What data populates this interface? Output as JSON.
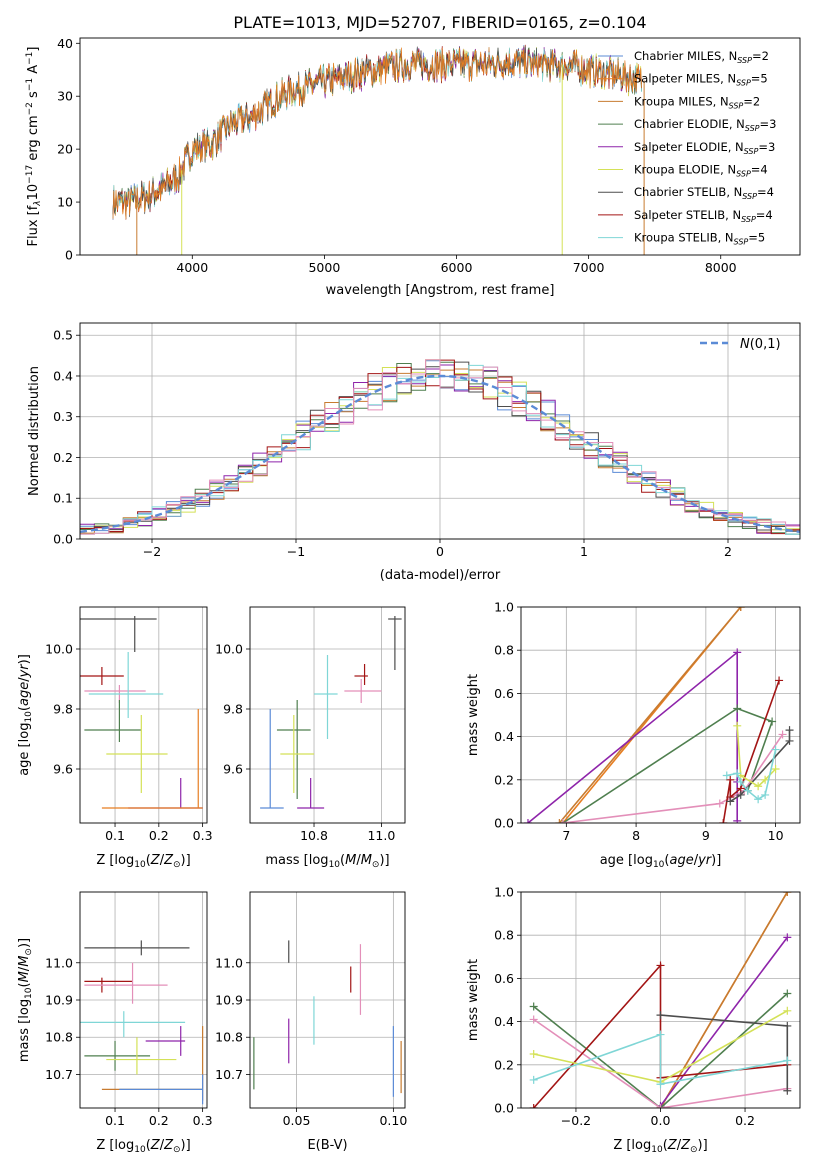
{
  "title": "PLATE=1013, MJD=52707, FIBERID=0165, z=0.104",
  "colors": [
    "#5b8bd6",
    "#e67e22",
    "#c77b30",
    "#4f7f4f",
    "#8e24aa",
    "#d4e157",
    "#4d4d4d",
    "#a31515",
    "#7fd6d6",
    "#e38fb9"
  ],
  "series_names": [
    "Chabrier MILES, N_SSP=2",
    "Salpeter MILES, N_SSP=5",
    "Kroupa MILES, N_SSP=2",
    "Chabrier ELODIE, N_SSP=3",
    "Salpeter ELODIE, N_SSP=3",
    "Kroupa ELODIE, N_SSP=4",
    "Chabrier STELIB, N_SSP=4",
    "Salpeter STELIB, N_SSP=4",
    "Kroupa STELIB, N_SSP=5"
  ],
  "series_legend": [
    {
      "label": "Chabrier MILES, N",
      "sub": "SSP",
      "suffix": "=2",
      "color": "#5b8bd6"
    },
    {
      "label": "Salpeter MILES, N",
      "sub": "SSP",
      "suffix": "=5",
      "color": "#e67e22"
    },
    {
      "label": "Kroupa MILES, N",
      "sub": "SSP",
      "suffix": "=2",
      "color": "#c77b30"
    },
    {
      "label": "Chabrier ELODIE, N",
      "sub": "SSP",
      "suffix": "=3",
      "color": "#4f7f4f"
    },
    {
      "label": "Salpeter ELODIE, N",
      "sub": "SSP",
      "suffix": "=3",
      "color": "#8e24aa"
    },
    {
      "label": "Kroupa ELODIE, N",
      "sub": "SSP",
      "suffix": "=4",
      "color": "#d4e157"
    },
    {
      "label": "Chabrier STELIB, N",
      "sub": "SSP",
      "suffix": "=4",
      "color": "#4d4d4d"
    },
    {
      "label": "Salpeter STELIB, N",
      "sub": "SSP",
      "suffix": "=4",
      "color": "#a31515"
    },
    {
      "label": "Kroupa STELIB, N",
      "sub": "SSP",
      "suffix": "=5",
      "color": "#7fd6d6"
    }
  ],
  "chart_data": [
    {
      "id": "spectrum",
      "type": "line",
      "title": "PLATE=1013, MJD=52707, FIBERID=0165, z=0.104",
      "xlabel": "wavelength [Angstrom, rest frame]",
      "ylabel": "Flux [f_λ10^-17 erg cm^-2 s^-1 A^-1]",
      "xlim": [
        3150,
        8600
      ],
      "ylim": [
        0,
        41
      ],
      "xticks": [
        4000,
        5000,
        6000,
        7000,
        8000
      ],
      "yticks": [
        0,
        10,
        20,
        30,
        40
      ],
      "legend_position": "upper right",
      "grid": false,
      "continuum": {
        "x": [
          3400,
          3500,
          3650,
          3800,
          3900,
          4000,
          4150,
          4300,
          4450,
          4600,
          4750,
          4900,
          5050,
          5200,
          5400,
          5600,
          5800,
          6000,
          6200,
          6400,
          6600,
          6800,
          7000,
          7200,
          7400
        ],
        "y": [
          10,
          10,
          11,
          13,
          15,
          20,
          21,
          25,
          26,
          29,
          31,
          32,
          33,
          34,
          35,
          36,
          36,
          36,
          36,
          36.5,
          36,
          36,
          35,
          34,
          33
        ]
      },
      "dropouts": [
        {
          "series": 2,
          "x": 3580,
          "y": 0
        },
        {
          "series": 5,
          "x": 3920,
          "y": 0
        },
        {
          "series": 5,
          "x": 6800,
          "y": 0
        },
        {
          "series": 2,
          "x": 7420,
          "y": 0
        }
      ]
    },
    {
      "id": "residuals",
      "type": "histogram",
      "xlabel": "(data-model)/error",
      "ylabel": "Normed distribution",
      "xlim": [
        -2.5,
        2.5
      ],
      "ylim": [
        0,
        0.53
      ],
      "xticks": [
        -2,
        -1,
        0,
        1,
        2
      ],
      "yticks": [
        0,
        0.1,
        0.2,
        0.3,
        0.4,
        0.5
      ],
      "bin_width": 0.1,
      "grid": true,
      "reference_curve": {
        "name": "N(0,1)",
        "style": "dashed",
        "color": "#5b8bd6",
        "mean": 0,
        "sigma": 1,
        "peak": 0.4
      },
      "legend_position": "upper right"
    },
    {
      "id": "age-vs-Z",
      "type": "errorbar",
      "xlabel": "Z [log10(Z/Z⊙)]",
      "ylabel": "age [log10(age/yr)]",
      "xlim": [
        0.02,
        0.31
      ],
      "ylim": [
        9.42,
        10.14
      ],
      "xticks": [
        0.1,
        0.2,
        0.3
      ],
      "yticks": [
        9.6,
        9.8,
        10.0
      ],
      "grid": true,
      "points": [
        {
          "series": 6,
          "x": 0.145,
          "y": 10.1,
          "xerr": [
            0.145,
            0.05
          ],
          "yerr": [
            0.11,
            0.01
          ]
        },
        {
          "series": 7,
          "x": 0.07,
          "y": 9.91,
          "xerr": [
            0.05,
            0.05
          ],
          "yerr": [
            0.03,
            0.03
          ]
        },
        {
          "series": 9,
          "x": 0.11,
          "y": 9.86,
          "xerr": [
            0.08,
            0.06
          ],
          "yerr": [
            0.04,
            0.02
          ]
        },
        {
          "series": 8,
          "x": 0.13,
          "y": 9.85,
          "xerr": [
            0.09,
            0.08
          ],
          "yerr": [
            0.08,
            0.14
          ]
        },
        {
          "series": 3,
          "x": 0.11,
          "y": 9.73,
          "xerr": [
            0.08,
            0.05
          ],
          "yerr": [
            0.04,
            0.1
          ]
        },
        {
          "series": 5,
          "x": 0.16,
          "y": 9.65,
          "xerr": [
            0.08,
            0.06
          ],
          "yerr": [
            0.13,
            0.13
          ]
        },
        {
          "series": 4,
          "x": 0.25,
          "y": 9.47,
          "xerr": [
            0.12,
            0.05
          ],
          "yerr": [
            0,
            0.1
          ]
        },
        {
          "series": 1,
          "x": 0.29,
          "y": 9.47,
          "xerr": [
            0.22,
            0.01
          ],
          "yerr": [
            0,
            0.33
          ]
        }
      ]
    },
    {
      "id": "age-vs-mass",
      "type": "errorbar",
      "xlabel": "mass [log10(M/M⊙)]",
      "ylabel": "",
      "xlim": [
        10.61,
        11.07
      ],
      "ylim": [
        9.42,
        10.14
      ],
      "xticks": [
        10.8,
        11.0
      ],
      "yticks": [
        9.6,
        9.8,
        10.0
      ],
      "grid": true,
      "points": [
        {
          "series": 6,
          "x": 11.04,
          "y": 10.1,
          "xerr": [
            0.02,
            0.02
          ],
          "yerr": [
            0.17,
            0.01
          ]
        },
        {
          "series": 7,
          "x": 10.95,
          "y": 9.91,
          "xerr": [
            0.03,
            0.01
          ],
          "yerr": [
            0.03,
            0.04
          ]
        },
        {
          "series": 9,
          "x": 10.94,
          "y": 9.86,
          "xerr": [
            0.05,
            0.06
          ],
          "yerr": [
            0.04,
            0.04
          ]
        },
        {
          "series": 8,
          "x": 10.84,
          "y": 9.85,
          "xerr": [
            0.04,
            0.03
          ],
          "yerr": [
            0.15,
            0.13
          ]
        },
        {
          "series": 3,
          "x": 10.75,
          "y": 9.73,
          "xerr": [
            0.06,
            0.04
          ],
          "yerr": [
            0.23,
            0.1
          ]
        },
        {
          "series": 5,
          "x": 10.74,
          "y": 9.65,
          "xerr": [
            0.04,
            0.06
          ],
          "yerr": [
            0.13,
            0.13
          ]
        },
        {
          "series": 4,
          "x": 10.79,
          "y": 9.47,
          "xerr": [
            0.04,
            0.04
          ],
          "yerr": [
            0,
            0.1
          ]
        },
        {
          "series": 0,
          "x": 10.67,
          "y": 9.47,
          "xerr": [
            0.03,
            0.04
          ],
          "yerr": [
            0,
            0.33
          ]
        }
      ]
    },
    {
      "id": "massweight-vs-age",
      "type": "line",
      "xlabel": "age [log10(age/yr)]",
      "ylabel": "mass weight",
      "xlim": [
        6.35,
        10.35
      ],
      "ylim": [
        0,
        1.0
      ],
      "xticks": [
        7,
        8,
        9,
        10
      ],
      "yticks": [
        0,
        0.2,
        0.4,
        0.6,
        0.8,
        1.0
      ],
      "grid": true,
      "lines": [
        {
          "series": 1,
          "x": [
            6.95,
            9.5
          ],
          "y": [
            0,
            1.0
          ]
        },
        {
          "series": 2,
          "x": [
            6.9,
            9.5
          ],
          "y": [
            0,
            1.0
          ]
        },
        {
          "series": 4,
          "x": [
            6.45,
            9.45,
            9.45,
            9.45
          ],
          "y": [
            0,
            0.79,
            0.19,
            0.01
          ]
        },
        {
          "series": 3,
          "x": [
            6.95,
            9.45,
            9.95,
            9.6
          ],
          "y": [
            0,
            0.53,
            0.47,
            0.15
          ]
        },
        {
          "series": 9,
          "x": [
            6.95,
            9.2,
            9.55,
            10.1
          ],
          "y": [
            0,
            0.09,
            0.15,
            0.41
          ]
        },
        {
          "series": 7,
          "x": [
            9.25,
            9.35,
            9.35,
            9.5,
            10.05
          ],
          "y": [
            0,
            0.2,
            0.12,
            0.16,
            0.66
          ]
        },
        {
          "series": 6,
          "x": [
            9.35,
            9.5,
            10.2,
            10.2
          ],
          "y": [
            0.1,
            0.13,
            0.38,
            0.43
          ]
        },
        {
          "series": 5,
          "x": [
            9.45,
            9.5,
            9.75,
            9.85,
            10.0
          ],
          "y": [
            0.45,
            0.22,
            0.17,
            0.2,
            0.25
          ]
        },
        {
          "series": 8,
          "x": [
            9.3,
            9.45,
            9.5,
            9.6,
            9.75,
            9.85,
            10.0
          ],
          "y": [
            0.22,
            0.23,
            0.19,
            0.15,
            0.11,
            0.13,
            0.34
          ]
        }
      ]
    },
    {
      "id": "mass-vs-Z",
      "type": "errorbar",
      "xlabel": "Z [log10(Z/Z⊙)]",
      "ylabel": "mass [log10(M/M⊙)]",
      "xlim": [
        0.02,
        0.31
      ],
      "ylim": [
        10.61,
        11.19
      ],
      "xticks": [
        0.1,
        0.2,
        0.3
      ],
      "yticks": [
        10.7,
        10.8,
        10.9,
        11.0
      ],
      "grid": true,
      "points": [
        {
          "series": 6,
          "x": 0.16,
          "y": 11.04,
          "xerr": [
            0.13,
            0.11
          ],
          "yerr": [
            0.02,
            0.02
          ]
        },
        {
          "series": 7,
          "x": 0.07,
          "y": 10.95,
          "xerr": [
            0.04,
            0.07
          ],
          "yerr": [
            0.03,
            0.01
          ]
        },
        {
          "series": 9,
          "x": 0.14,
          "y": 10.94,
          "xerr": [
            0.11,
            0.08
          ],
          "yerr": [
            0.05,
            0.06
          ]
        },
        {
          "series": 8,
          "x": 0.12,
          "y": 10.84,
          "xerr": [
            0.1,
            0.14
          ],
          "yerr": [
            0.04,
            0.03
          ]
        },
        {
          "series": 4,
          "x": 0.25,
          "y": 10.79,
          "xerr": [
            0.08,
            0.01
          ],
          "yerr": [
            0.04,
            0.04
          ]
        },
        {
          "series": 3,
          "x": 0.1,
          "y": 10.75,
          "xerr": [
            0.07,
            0.08
          ],
          "yerr": [
            0.04,
            0.04
          ]
        },
        {
          "series": 5,
          "x": 0.15,
          "y": 10.74,
          "xerr": [
            0.07,
            0.09
          ],
          "yerr": [
            0.04,
            0.06
          ]
        },
        {
          "series": 2,
          "x": 0.3,
          "y": 10.66,
          "xerr": [
            0.23,
            0.0
          ],
          "yerr": [
            0.03,
            0.17
          ]
        },
        {
          "series": 0,
          "x": 0.3,
          "y": 10.66,
          "xerr": [
            0.19,
            0.0
          ],
          "yerr": [
            0.04,
            0.04
          ]
        }
      ]
    },
    {
      "id": "mass-vs-EBV",
      "type": "errorbar",
      "xlabel": "E(B-V)",
      "ylabel": "",
      "xlim": [
        0.026,
        0.106
      ],
      "ylim": [
        10.61,
        11.19
      ],
      "xticks": [
        0.05,
        0.1
      ],
      "yticks": [
        10.7,
        10.8,
        10.9,
        11.0
      ],
      "grid": true,
      "points": [
        {
          "series": 6,
          "x": 0.046,
          "y": 11.04,
          "xerr": [
            0,
            0
          ],
          "yerr": [
            0.04,
            0.02
          ]
        },
        {
          "series": 9,
          "x": 0.083,
          "y": 10.95,
          "xerr": [
            0,
            0
          ],
          "yerr": [
            0.09,
            0.1
          ]
        },
        {
          "series": 7,
          "x": 0.078,
          "y": 10.95,
          "xerr": [
            0,
            0
          ],
          "yerr": [
            0.03,
            0.04
          ]
        },
        {
          "series": 8,
          "x": 0.059,
          "y": 10.84,
          "xerr": [
            0,
            0
          ],
          "yerr": [
            0.06,
            0.07
          ]
        },
        {
          "series": 4,
          "x": 0.046,
          "y": 10.79,
          "xerr": [
            0,
            0
          ],
          "yerr": [
            0.06,
            0.06
          ]
        },
        {
          "series": 3,
          "x": 0.028,
          "y": 10.73,
          "xerr": [
            0,
            0
          ],
          "yerr": [
            0.07,
            0.07
          ]
        },
        {
          "series": 2,
          "x": 0.104,
          "y": 10.72,
          "xerr": [
            0,
            0
          ],
          "yerr": [
            0.07,
            0.07
          ]
        },
        {
          "series": 0,
          "x": 0.1,
          "y": 10.75,
          "xerr": [
            0,
            0
          ],
          "yerr": [
            0.11,
            0.08
          ]
        }
      ]
    },
    {
      "id": "massweight-vs-Z",
      "type": "line",
      "xlabel": "Z [log10(Z/Z⊙)]",
      "ylabel": "mass weight",
      "xlim": [
        -0.33,
        0.33
      ],
      "ylim": [
        0,
        1.0
      ],
      "xticks": [
        -0.2,
        0.0,
        0.2
      ],
      "yticks": [
        0,
        0.2,
        0.4,
        0.6,
        0.8,
        1.0
      ],
      "grid": true,
      "lines": [
        {
          "series": 1,
          "x": [
            0.0,
            0.3
          ],
          "y": [
            0,
            1.0
          ]
        },
        {
          "series": 2,
          "x": [
            0.0,
            0.3
          ],
          "y": [
            0,
            1.0
          ]
        },
        {
          "series": 4,
          "x": [
            0.0,
            0.3
          ],
          "y": [
            0.01,
            0.79
          ]
        },
        {
          "series": 3,
          "x": [
            -0.3,
            0.0,
            0.3
          ],
          "y": [
            0.47,
            0.0,
            0.53
          ]
        },
        {
          "series": 9,
          "x": [
            -0.3,
            0.0,
            0.3
          ],
          "y": [
            0.41,
            0.0,
            0.09
          ]
        },
        {
          "series": 7,
          "x": [
            -0.3,
            0.0,
            0.0,
            0.3
          ],
          "y": [
            0,
            0.66,
            0.14,
            0.2
          ]
        },
        {
          "series": 6,
          "x": [
            0.0,
            0.3,
            0.3
          ],
          "y": [
            0.43,
            0.38,
            0.08
          ]
        },
        {
          "series": 5,
          "x": [
            -0.3,
            0.0,
            0.3
          ],
          "y": [
            0.25,
            0.12,
            0.45
          ]
        },
        {
          "series": 8,
          "x": [
            -0.3,
            0.0,
            0.0,
            0.3
          ],
          "y": [
            0.13,
            0.34,
            0.11,
            0.22
          ]
        }
      ]
    }
  ]
}
